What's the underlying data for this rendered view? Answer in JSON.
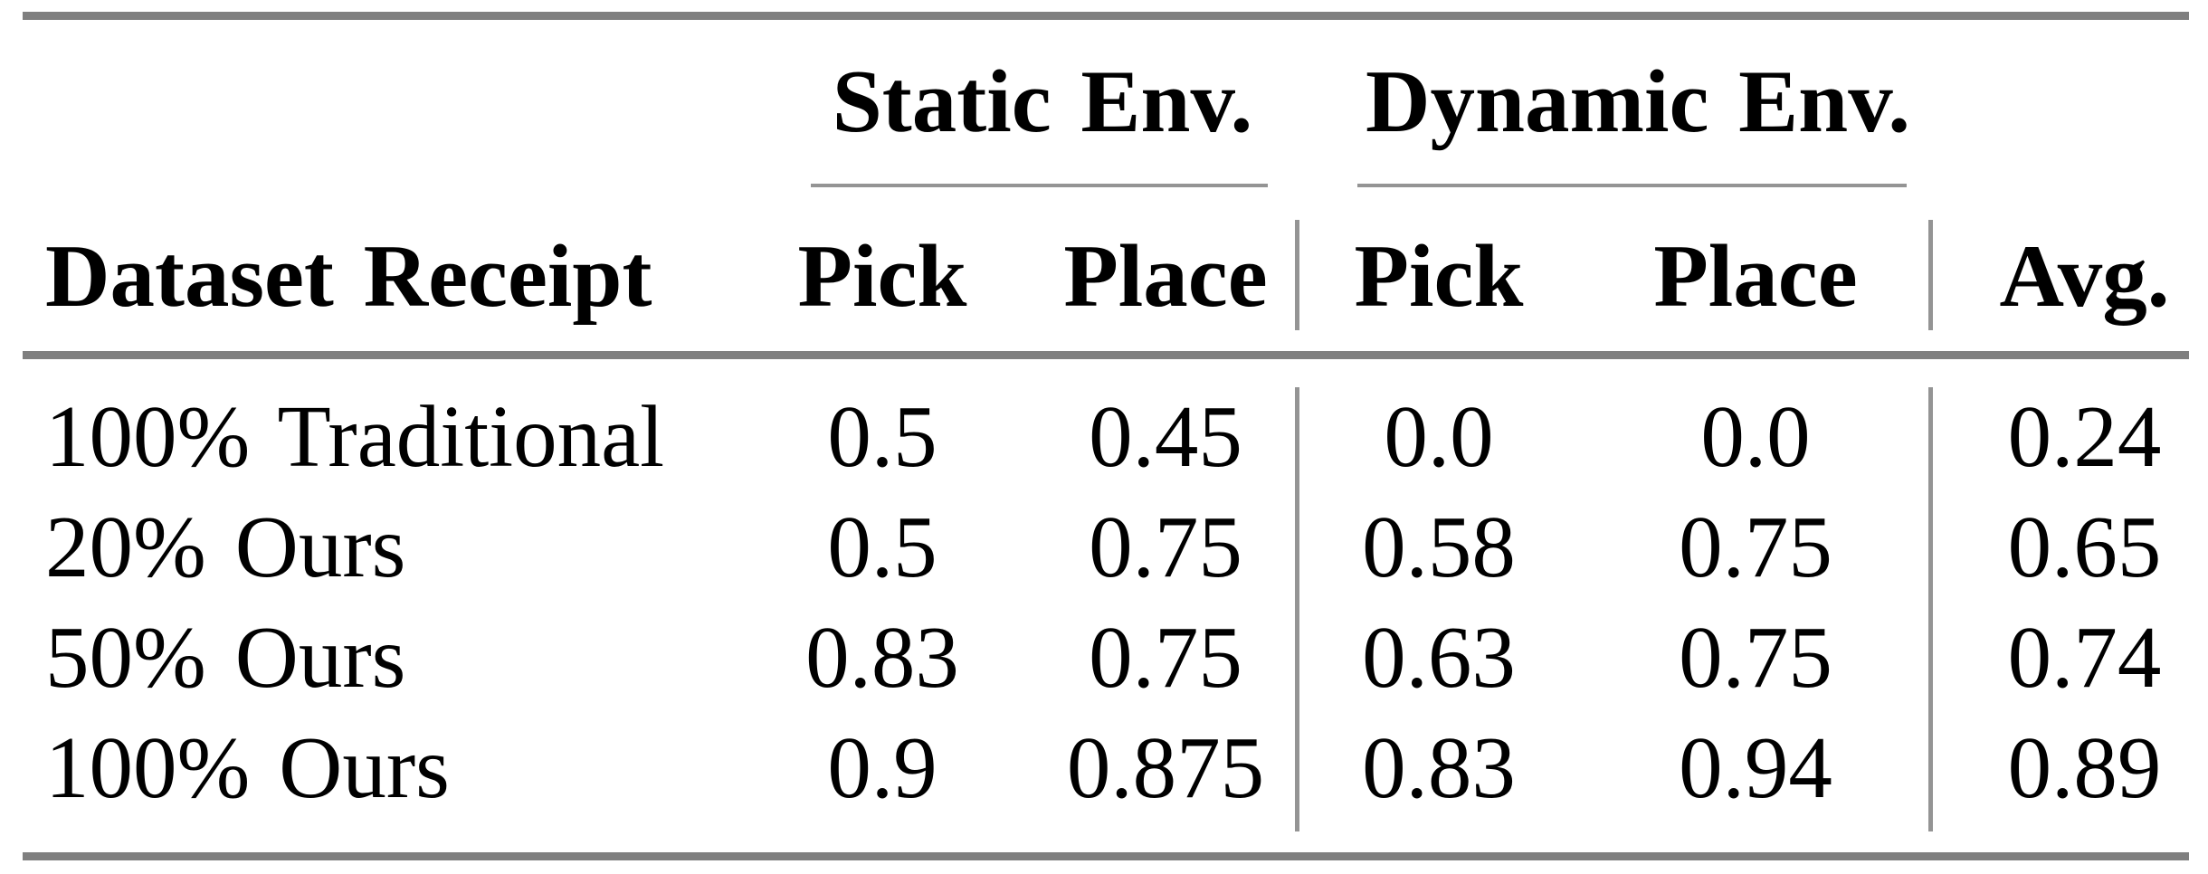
{
  "table": {
    "group_headers": [
      {
        "label": "Static Env."
      },
      {
        "label": "Dynamic Env."
      }
    ],
    "columns": [
      "Dataset Receipt",
      "Pick",
      "Place",
      "Pick",
      "Place",
      "Avg."
    ],
    "rows": [
      {
        "label": "100% Traditional",
        "values": [
          "0.5",
          "0.45",
          "0.0",
          "0.0",
          "0.24"
        ]
      },
      {
        "label": "20% Ours",
        "values": [
          "0.5",
          "0.75",
          "0.58",
          "0.75",
          "0.65"
        ]
      },
      {
        "label": "50% Ours",
        "values": [
          "0.83",
          "0.75",
          "0.63",
          "0.75",
          "0.74"
        ]
      },
      {
        "label": "100% Ours",
        "values": [
          "0.9",
          "0.875",
          "0.83",
          "0.94",
          "0.89"
        ]
      }
    ],
    "colors": {
      "text": "#000000",
      "thick_rule": "#7f7f7f",
      "thin_rule": "#949494",
      "background": "#ffffff"
    }
  },
  "chart_data": {
    "type": "table",
    "title": "",
    "column_groups": [
      "Static Env.",
      "Dynamic Env."
    ],
    "categories": [
      "100% Traditional",
      "20% Ours",
      "50% Ours",
      "100% Ours"
    ],
    "series": [
      {
        "name": "Static Env. Pick",
        "values": [
          0.5,
          0.5,
          0.83,
          0.9
        ]
      },
      {
        "name": "Static Env. Place",
        "values": [
          0.45,
          0.75,
          0.75,
          0.875
        ]
      },
      {
        "name": "Dynamic Env. Pick",
        "values": [
          0.0,
          0.58,
          0.63,
          0.83
        ]
      },
      {
        "name": "Dynamic Env. Place",
        "values": [
          0.0,
          0.75,
          0.75,
          0.94
        ]
      },
      {
        "name": "Avg.",
        "values": [
          0.24,
          0.65,
          0.74,
          0.89
        ]
      }
    ]
  }
}
